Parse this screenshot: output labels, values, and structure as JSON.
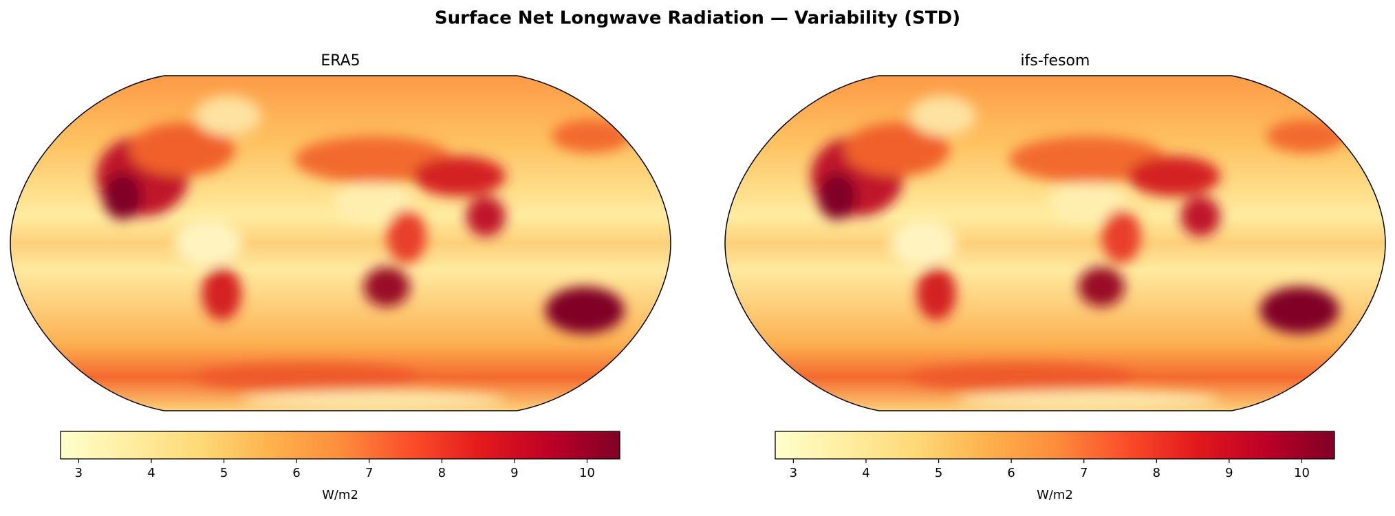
{
  "figure": {
    "title": "Surface Net Longwave Radiation — Variability (STD)",
    "colormap": "YlOrRd",
    "panels": [
      {
        "title": "ERA5",
        "colorbar": {
          "label": "W/m2",
          "lim": [
            2.75,
            10.45
          ],
          "ticks": [
            3,
            4,
            5,
            6,
            7,
            8,
            9,
            10
          ]
        }
      },
      {
        "title": "ifs-fesom",
        "colorbar": {
          "label": "W/m2",
          "lim": [
            2.75,
            10.45
          ],
          "ticks": [
            3,
            4,
            5,
            6,
            7,
            8,
            9,
            10
          ]
        }
      }
    ]
  }
}
